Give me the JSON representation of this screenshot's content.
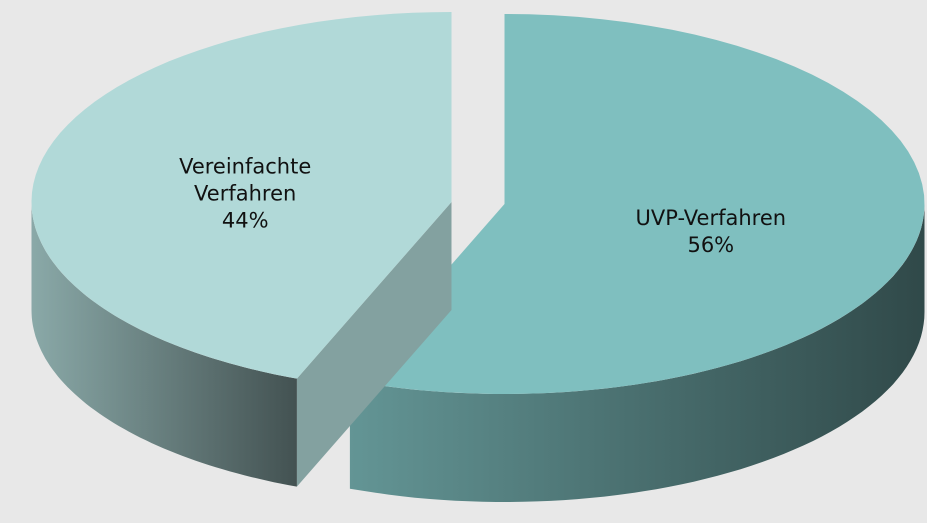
{
  "chart_data": {
    "type": "pie",
    "categories": [
      "UVP-Verfahren",
      "Vereinfachte Verfahren"
    ],
    "values": [
      56,
      44
    ],
    "value_labels": [
      "56%",
      "44%"
    ],
    "colors": [
      "#7fbfbf",
      "#b1d9d8"
    ],
    "start_angle": 0,
    "direction": "clockwise",
    "three_d": true,
    "exploded": true
  }
}
